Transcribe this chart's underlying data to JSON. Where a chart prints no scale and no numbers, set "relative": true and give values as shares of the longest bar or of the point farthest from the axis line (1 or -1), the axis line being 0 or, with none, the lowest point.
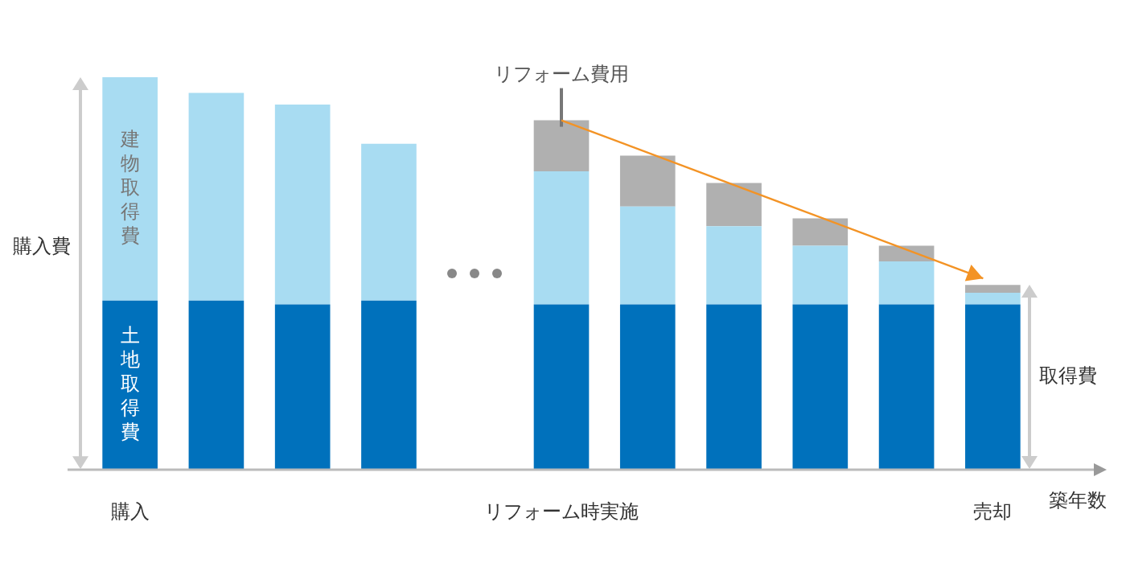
{
  "chart_data": {
    "type": "bar",
    "stacked": true,
    "relative": true,
    "xlabel": "築年数",
    "ylabel": "購入費",
    "annotations": [
      "取得費"
    ],
    "categories": [
      "購入",
      null,
      null,
      null,
      null,
      "リフォーム時実施",
      null,
      null,
      null,
      null,
      "売却"
    ],
    "series": [
      {
        "name": "土地取得費",
        "color": "#0071bc",
        "values": [
          0.43,
          0.43,
          0.42,
          0.43,
          null,
          0.42,
          0.42,
          0.42,
          0.42,
          0.42,
          0.42
        ]
      },
      {
        "name": "建物取得費",
        "color": "#a8dcf2",
        "values": [
          0.57,
          0.53,
          0.51,
          0.4,
          null,
          0.34,
          0.25,
          0.2,
          0.15,
          0.11,
          0.03
        ]
      },
      {
        "name": "リフォーム費用",
        "color": "#b0b0b0",
        "values": [
          null,
          null,
          null,
          null,
          null,
          0.13,
          0.13,
          0.11,
          0.07,
          0.04,
          0.02
        ]
      }
    ]
  }
}
